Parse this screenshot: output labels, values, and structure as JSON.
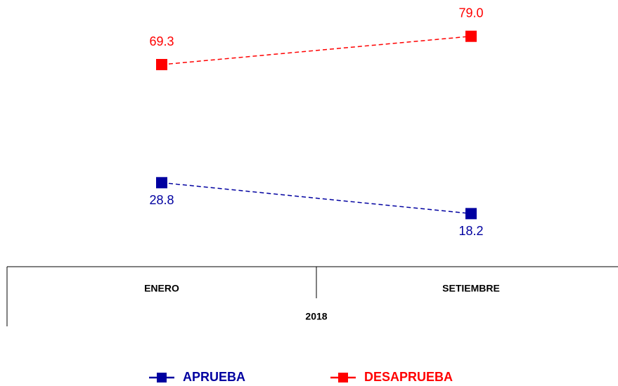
{
  "chart_data": {
    "type": "line",
    "categories": [
      "ENERO",
      "SETIEMBRE"
    ],
    "category_group": "2018",
    "ylim": [
      0,
      90
    ],
    "series": [
      {
        "name": "APRUEBA",
        "color": "#0000a0",
        "values": [
          28.8,
          18.2
        ],
        "label_position": "below"
      },
      {
        "name": "DESAPRUEBA",
        "color": "#ff0000",
        "values": [
          69.3,
          79.0
        ],
        "value_labels": [
          "69.3",
          "79.0"
        ],
        "label_position": "above"
      }
    ],
    "line_style": "dashed",
    "legend": "bottom"
  }
}
